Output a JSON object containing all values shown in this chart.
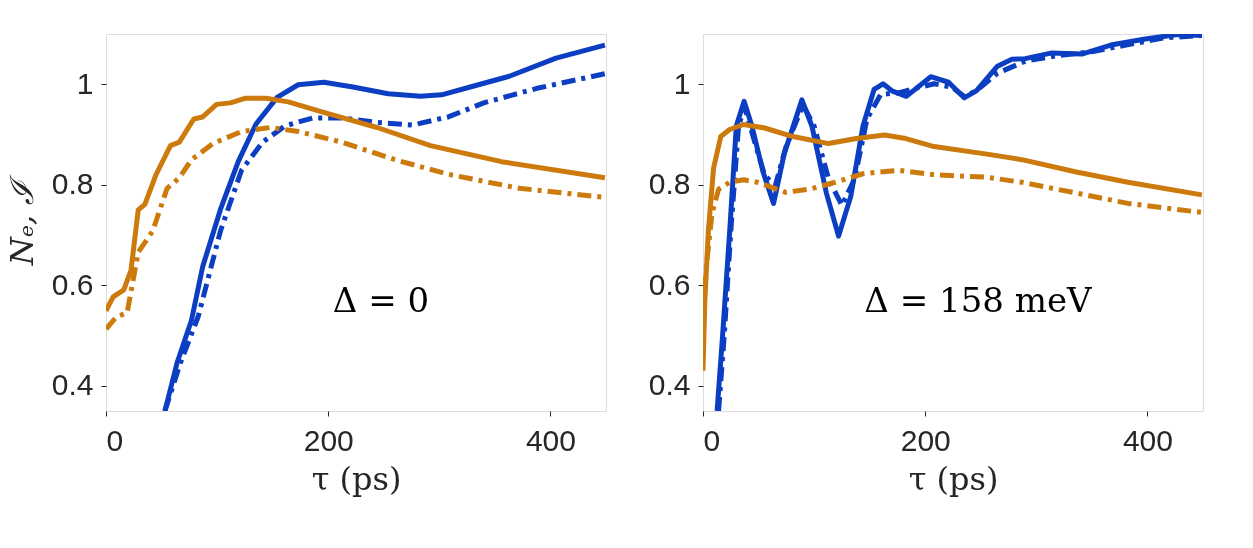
{
  "chart_data": [
    {
      "type": "line",
      "xlabel": "τ (ps)",
      "ylabel": "Nₑ, ℐ",
      "annotations": [
        "Δ = 0"
      ],
      "xlim": [
        0,
        450
      ],
      "ylim": [
        0.35,
        1.1
      ],
      "xticks": [
        0,
        200,
        400
      ],
      "yticks": [
        0.4,
        0.6,
        0.8,
        1
      ],
      "series": [
        {
          "color": "#0b3ec2",
          "line_style": "solid",
          "x": [
            53,
            64,
            77,
            87,
            103,
            119,
            135,
            154,
            173,
            196,
            221,
            254,
            283,
            302,
            327,
            363,
            405,
            449
          ],
          "values": [
            0.35,
            0.446,
            0.531,
            0.637,
            0.751,
            0.846,
            0.921,
            0.974,
            0.999,
            1.004,
            0.995,
            0.981,
            0.976,
            0.979,
            0.994,
            1.016,
            1.052,
            1.078
          ]
        },
        {
          "color": "#0b3ec2",
          "line_style": "dashdot",
          "x": [
            53,
            67,
            83,
            103,
            122,
            141,
            161,
            186,
            212,
            244,
            276,
            308,
            340,
            388,
            449
          ],
          "values": [
            0.35,
            0.446,
            0.538,
            0.708,
            0.829,
            0.885,
            0.917,
            0.933,
            0.933,
            0.924,
            0.919,
            0.935,
            0.963,
            0.992,
            1.021
          ]
        },
        {
          "color": "#cc7a0c",
          "line_style": "solid",
          "x": [
            0,
            6.4,
            16,
            22.5,
            29,
            35,
            45,
            58,
            66,
            79,
            87,
            99.5,
            112,
            125,
            144,
            164,
            199,
            244,
            292,
            356,
            449
          ],
          "values": [
            0.549,
            0.577,
            0.591,
            0.63,
            0.75,
            0.761,
            0.82,
            0.878,
            0.885,
            0.931,
            0.935,
            0.96,
            0.963,
            0.972,
            0.972,
            0.965,
            0.942,
            0.914,
            0.878,
            0.846,
            0.814
          ]
        },
        {
          "color": "#cc7a0c",
          "line_style": "dashdot",
          "x": [
            0,
            9.6,
            19,
            29,
            42,
            55,
            66,
            77,
            96,
            122,
            148,
            173,
            212,
            260,
            308,
            372,
            449
          ],
          "values": [
            0.513,
            0.538,
            0.545,
            0.666,
            0.708,
            0.793,
            0.814,
            0.85,
            0.882,
            0.906,
            0.914,
            0.906,
            0.885,
            0.85,
            0.821,
            0.793,
            0.775
          ]
        }
      ]
    },
    {
      "type": "line",
      "xlabel": "τ (ps)",
      "annotations": [
        "Δ = 158 meV"
      ],
      "xlim": [
        0,
        450
      ],
      "ylim": [
        0.35,
        1.1
      ],
      "xticks": [
        0,
        200,
        400
      ],
      "yticks": [
        0.4,
        0.6,
        0.8,
        1
      ],
      "series": [
        {
          "color": "#0b3ec2",
          "line_style": "solid",
          "x": [
            12.7,
            17.5,
            24,
            30,
            37,
            44,
            54,
            63.5,
            73,
            89,
            98,
            111,
            122,
            133,
            144,
            154,
            162,
            170,
            183,
            205,
            221,
            235,
            246,
            265,
            278,
            290,
            313,
            341,
            367,
            398,
            427,
            449
          ],
          "values": [
            0.35,
            0.496,
            0.707,
            0.917,
            0.966,
            0.917,
            0.826,
            0.763,
            0.861,
            0.969,
            0.917,
            0.784,
            0.698,
            0.777,
            0.917,
            0.99,
            1.001,
            0.987,
            0.976,
            1.015,
            1.004,
            0.973,
            0.987,
            1.036,
            1.05,
            1.051,
            1.062,
            1.06,
            1.078,
            1.09,
            1.099,
            1.097
          ]
        },
        {
          "color": "#0b3ec2",
          "line_style": "dashdot",
          "x": [
            14,
            19,
            25,
            32,
            37.5,
            46,
            55.5,
            65,
            74.6,
            90,
            100,
            113,
            125,
            136.5,
            147.6,
            160,
            176,
            195,
            208,
            224,
            235,
            246,
            265,
            290,
            319,
            351,
            383,
            414,
            449
          ],
          "values": [
            0.35,
            0.496,
            0.707,
            0.917,
            0.955,
            0.889,
            0.819,
            0.798,
            0.875,
            0.959,
            0.917,
            0.812,
            0.759,
            0.812,
            0.931,
            0.98,
            0.983,
            0.994,
            1.001,
            0.994,
            0.976,
            0.987,
            1.022,
            1.046,
            1.057,
            1.065,
            1.079,
            1.092,
            1.097
          ]
        },
        {
          "color": "#cc7a0c",
          "line_style": "solid",
          "x": [
            0,
            1.6,
            4.8,
            9.5,
            16,
            24,
            36.5,
            55.5,
            81,
            113,
            138,
            163.5,
            182.5,
            208,
            255.5,
            287,
            335,
            382.5,
            449
          ],
          "values": [
            0.43,
            0.567,
            0.707,
            0.833,
            0.896,
            0.91,
            0.92,
            0.913,
            0.896,
            0.882,
            0.892,
            0.899,
            0.892,
            0.876,
            0.861,
            0.85,
            0.826,
            0.805,
            0.78
          ]
        },
        {
          "color": "#cc7a0c",
          "line_style": "dashdot",
          "x": [
            0,
            3,
            8,
            14,
            24,
            36.5,
            49,
            74.6,
            97,
            119,
            144,
            176,
            208,
            255.5,
            287,
            335,
            382.5,
            449
          ],
          "values": [
            0.532,
            0.637,
            0.742,
            0.791,
            0.805,
            0.81,
            0.805,
            0.785,
            0.792,
            0.805,
            0.822,
            0.829,
            0.82,
            0.815,
            0.805,
            0.784,
            0.763,
            0.745
          ]
        }
      ]
    }
  ]
}
